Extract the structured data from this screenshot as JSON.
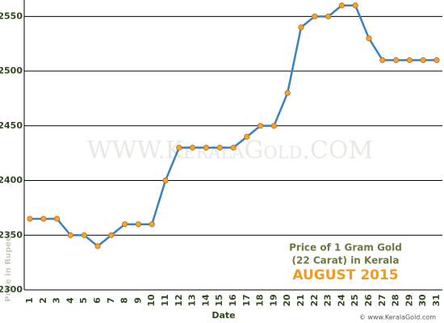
{
  "chart_data": {
    "type": "line",
    "watermark": "WWW.KeralaGold.COM",
    "annotation_lines": [
      "Price of 1 Gram Gold",
      "(22 Carat) in Kerala"
    ],
    "annotation_month": "AUGUST 2015",
    "x_label": "Date",
    "y_label": "Price in Rupees",
    "footer": "© www.KeralaGold.com",
    "categories": [
      "1",
      "2",
      "3",
      "4",
      "5",
      "6",
      "7",
      "8",
      "9",
      "10",
      "11",
      "12",
      "13",
      "14",
      "15",
      "16",
      "17",
      "18",
      "19",
      "20",
      "21",
      "22",
      "23",
      "24",
      "25",
      "26",
      "27",
      "28",
      "29",
      "30",
      "31"
    ],
    "values": [
      2365,
      2365,
      2365,
      2350,
      2350,
      2340,
      2350,
      2360,
      2360,
      2360,
      2400,
      2430,
      2430,
      2430,
      2430,
      2430,
      2440,
      2450,
      2450,
      2480,
      2540,
      2550,
      2550,
      2560,
      2560,
      2530,
      2510,
      2510,
      2510,
      2510,
      2510
    ],
    "color": "#3b82b8",
    "marker_color": "#f5a434",
    "ylim": [
      2300,
      2565
    ],
    "yticks": [
      2300,
      2350,
      2400,
      2450,
      2500,
      2550
    ],
    "grid": true
  }
}
